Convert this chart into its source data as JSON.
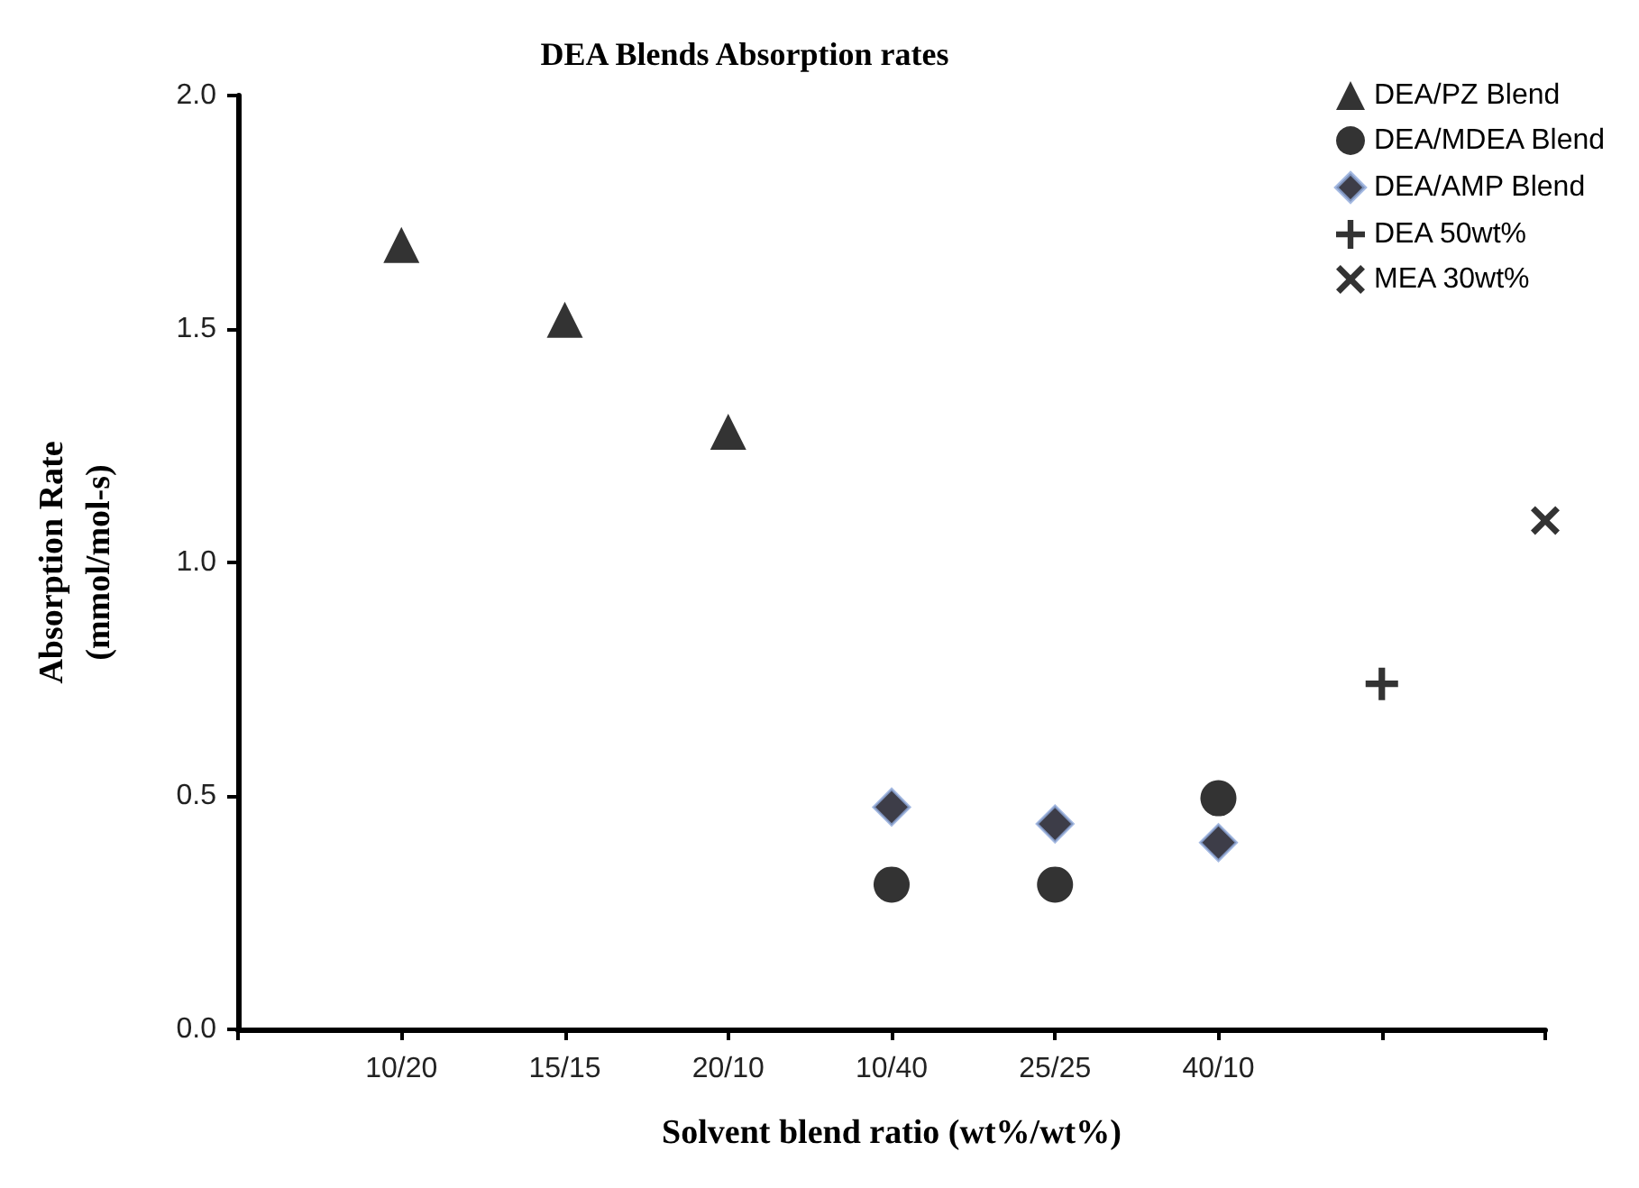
{
  "chart_data": {
    "type": "scatter",
    "title": "DEA Blends Absorption rates",
    "xlabel": "Solvent blend ratio (wt%/wt%)",
    "ylabel": "Absorption Rate\n(mmol/mol-s)",
    "categories": [
      null,
      "10/20",
      "15/15",
      "20/10",
      "10/40",
      "25/25",
      "40/10",
      null,
      null
    ],
    "series": [
      {
        "name": "DEA/PZ Blend",
        "color": "#000000",
        "marker": "triangle",
        "values": [
          null,
          1.68,
          1.52,
          1.28,
          null,
          null,
          null,
          null,
          null
        ]
      },
      {
        "name": "DEA/MDEA Blend",
        "color": "#000000",
        "marker": "circle",
        "values": [
          null,
          null,
          null,
          null,
          0.31,
          0.31,
          0.495,
          null,
          null
        ]
      },
      {
        "name": "DEA/AMP Blend",
        "color": "#0d0d1a",
        "marker": "diamond",
        "values": [
          null,
          null,
          null,
          null,
          0.476,
          0.44,
          0.4,
          null,
          null
        ]
      },
      {
        "name": "DEA 50wt%",
        "color": "#000000",
        "marker": "cross",
        "values": [
          null,
          null,
          null,
          null,
          null,
          null,
          null,
          0.74,
          null
        ]
      },
      {
        "name": "MEA 30wt%",
        "color": "#000000",
        "marker": "x",
        "values": [
          null,
          null,
          null,
          null,
          null,
          null,
          null,
          null,
          1.09
        ]
      }
    ],
    "ylim": [
      0,
      2
    ],
    "yticks": [
      {
        "value": 0,
        "label": "0.0"
      },
      {
        "value": 0.5,
        "label": "0.5"
      },
      {
        "value": 1,
        "label": "1.0"
      },
      {
        "value": 1.5,
        "label": "1.5"
      },
      {
        "value": 2,
        "label": "2.0"
      }
    ],
    "grid": false,
    "legend": "top right"
  }
}
